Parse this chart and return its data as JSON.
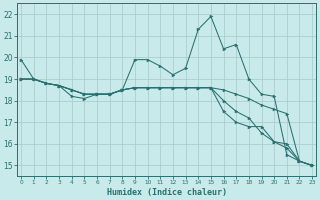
{
  "xlabel": "Humidex (Indice chaleur)",
  "bg_color": "#c8eaea",
  "grid_color": "#a8c8c8",
  "line_color": "#2a7070",
  "x": [
    0,
    1,
    2,
    3,
    4,
    5,
    6,
    7,
    8,
    9,
    10,
    11,
    12,
    13,
    14,
    15,
    16,
    17,
    18,
    19,
    20,
    21,
    22,
    23
  ],
  "line1": [
    19.9,
    19.0,
    18.8,
    18.7,
    18.2,
    18.1,
    18.3,
    18.3,
    18.5,
    19.9,
    19.9,
    19.6,
    19.2,
    19.5,
    21.3,
    21.9,
    20.4,
    20.6,
    19.0,
    18.3,
    18.2,
    15.5,
    15.2,
    15.0
  ],
  "line2": [
    19.0,
    19.0,
    18.8,
    18.7,
    18.5,
    18.3,
    18.3,
    18.3,
    18.5,
    18.6,
    18.6,
    18.6,
    18.6,
    18.6,
    18.6,
    18.6,
    18.5,
    18.3,
    18.1,
    17.8,
    17.6,
    17.4,
    15.2,
    15.0
  ],
  "line3": [
    19.0,
    19.0,
    18.8,
    18.7,
    18.5,
    18.3,
    18.3,
    18.3,
    18.5,
    18.6,
    18.6,
    18.6,
    18.6,
    18.6,
    18.6,
    18.6,
    18.0,
    17.5,
    17.2,
    16.5,
    16.1,
    15.8,
    15.2,
    15.0
  ],
  "line4": [
    19.0,
    19.0,
    18.8,
    18.7,
    18.5,
    18.3,
    18.3,
    18.3,
    18.5,
    18.6,
    18.6,
    18.6,
    18.6,
    18.6,
    18.6,
    18.6,
    17.5,
    17.0,
    16.8,
    16.8,
    16.1,
    16.0,
    15.2,
    15.0
  ],
  "ylim": [
    14.5,
    22.5
  ],
  "yticks": [
    15,
    16,
    17,
    18,
    19,
    20,
    21,
    22
  ],
  "xlim": [
    -0.3,
    23.3
  ],
  "figsize": [
    3.2,
    2.0
  ],
  "dpi": 100
}
